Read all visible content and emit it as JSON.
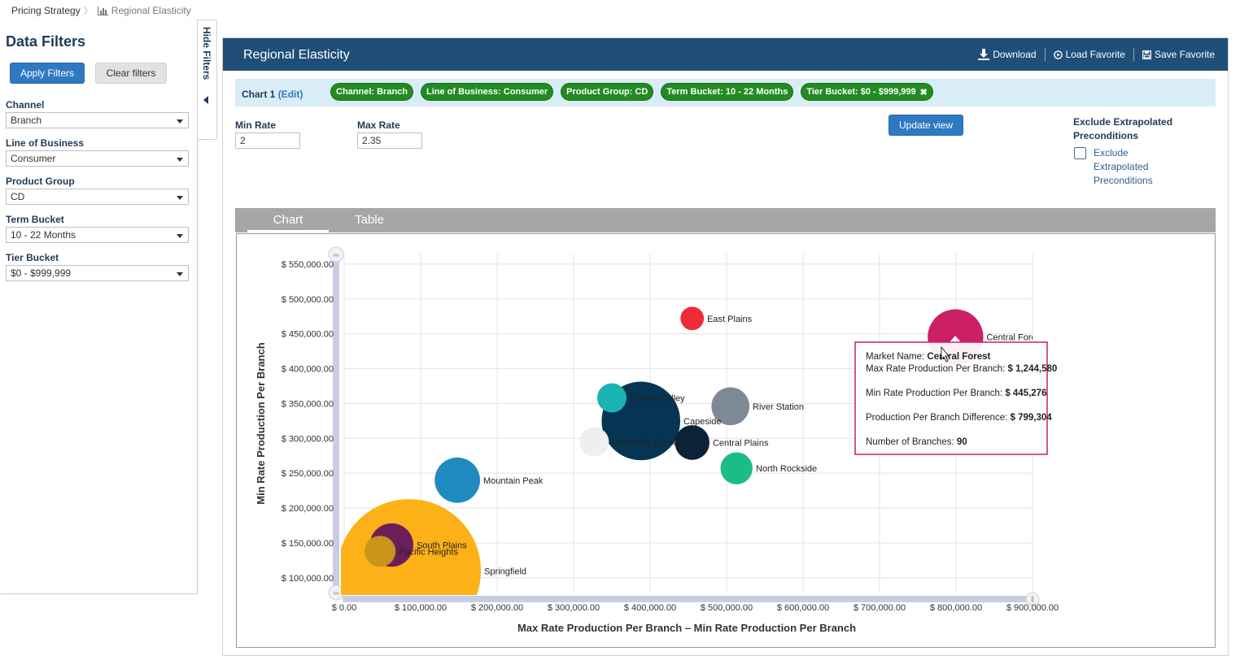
{
  "breadcrumb": {
    "root": "Pricing Strategy",
    "current": "Regional Elasticity"
  },
  "sidebar": {
    "title": "Data Filters",
    "apply_label": "Apply Filters",
    "clear_label": "Clear filters",
    "hide_label": "Hide Filters",
    "filters": [
      {
        "label": "Channel",
        "value": "Branch"
      },
      {
        "label": "Line of Business",
        "value": "Consumer"
      },
      {
        "label": "Product Group",
        "value": "CD"
      },
      {
        "label": "Term Bucket",
        "value": "10 - 22 Months"
      },
      {
        "label": "Tier Bucket",
        "value": "$0 - $999,999"
      }
    ]
  },
  "panel": {
    "title": "Regional Elasticity",
    "actions": {
      "download": "Download",
      "load": "Load Favorite",
      "save": "Save Favorite"
    },
    "chart_label": "Chart 1",
    "edit_label": "(Edit)",
    "pills": [
      "Channel: Branch",
      "Line of Business: Consumer",
      "Product Group: CD",
      "Term Bucket: 10 - 22 Months",
      "Tier Bucket: $0 - $999,999"
    ],
    "pill_remove_glyph": "✖",
    "min_rate_label": "Min Rate",
    "min_rate_value": "2",
    "max_rate_label": "Max Rate",
    "max_rate_value": "2.35",
    "update_label": "Update view",
    "exclude_title": "Exclude Extrapolated Preconditions",
    "exclude_checkbox_label": "Exclude Extrapolated Preconditions",
    "exclude_checked": false,
    "tabs": [
      "Chart",
      "Table"
    ],
    "active_tab": "Chart"
  },
  "chart_data": {
    "type": "scatter",
    "title": "",
    "xlabel": "Max Rate Production Per Branch – Min Rate Production Per Branch",
    "ylabel": "Min Rate Production Per Branch",
    "xlim": [
      0,
      900000
    ],
    "ylim": [
      80000,
      565000
    ],
    "x_ticks": [
      0,
      100000,
      200000,
      300000,
      400000,
      500000,
      600000,
      700000,
      800000,
      900000
    ],
    "x_tick_labels": [
      "$ 0.00",
      "$ 100,000.00",
      "$ 200,000.00",
      "$ 300,000.00",
      "$ 400,000.00",
      "$ 500,000.00",
      "$ 600,000.00",
      "$ 700,000.00",
      "$ 800,000.00",
      "$ 900,000.00"
    ],
    "y_ticks": [
      100000,
      150000,
      200000,
      250000,
      300000,
      350000,
      400000,
      450000,
      500000,
      550000
    ],
    "y_tick_labels": [
      "$ 100,000.00",
      "$ 150,000.00",
      "$ 200,000.00",
      "$ 250,000.00",
      "$ 300,000.00",
      "$ 350,000.00",
      "$ 400,000.00",
      "$ 450,000.00",
      "$ 500,000.00",
      "$ 550,000.00"
    ],
    "grid": true,
    "legend": "none",
    "size_metric": "Number of Branches",
    "points": [
      {
        "name": "Springfield",
        "x": 85000,
        "y": 110000,
        "size": 600,
        "color": "#fbb117"
      },
      {
        "name": "Mountain Peak",
        "x": 148000,
        "y": 240000,
        "size": 60,
        "color": "#1f8ac0"
      },
      {
        "name": "South Plains",
        "x": 62000,
        "y": 147000,
        "size": 55,
        "color": "#6b1f5a"
      },
      {
        "name": "Pacific Heights",
        "x": 47000,
        "y": 138000,
        "size": 28,
        "color": "#c8941a"
      },
      {
        "name": "Central Valley",
        "x": 350000,
        "y": 358000,
        "size": 25,
        "color": "#19b3b3"
      },
      {
        "name": "Capeside",
        "x": 388000,
        "y": 325000,
        "size": 180,
        "color": "#053552"
      },
      {
        "name": "University Center",
        "x": 327000,
        "y": 295000,
        "size": 25,
        "color": "#efefef"
      },
      {
        "name": "Central Plains",
        "x": 455000,
        "y": 294000,
        "size": 35,
        "color": "#0c2236"
      },
      {
        "name": "East Plains",
        "x": 455000,
        "y": 472000,
        "size": 16,
        "color": "#ef2a3a"
      },
      {
        "name": "River Station",
        "x": 505000,
        "y": 346000,
        "size": 42,
        "color": "#7d8995"
      },
      {
        "name": "North Rockside",
        "x": 513000,
        "y": 257000,
        "size": 30,
        "color": "#1bbd85"
      },
      {
        "name": "Central Forest",
        "x": 799304,
        "y": 445276,
        "size": 90,
        "color": "#cc1f66"
      }
    ],
    "tooltip": {
      "market_label": "Market Name: ",
      "market_value": "Central Forest",
      "max_label": "Max Rate Production Per Branch: ",
      "max_value": "$ 1,244,580",
      "min_label": "Min Rate Production Per Branch: ",
      "min_value": "$ 445,276",
      "diff_label": "Production Per Branch Difference: ",
      "diff_value": "$ 799,304",
      "branches_label": "Number of Branches: ",
      "branches_value": "90",
      "border_color": "#cc1f66"
    }
  }
}
